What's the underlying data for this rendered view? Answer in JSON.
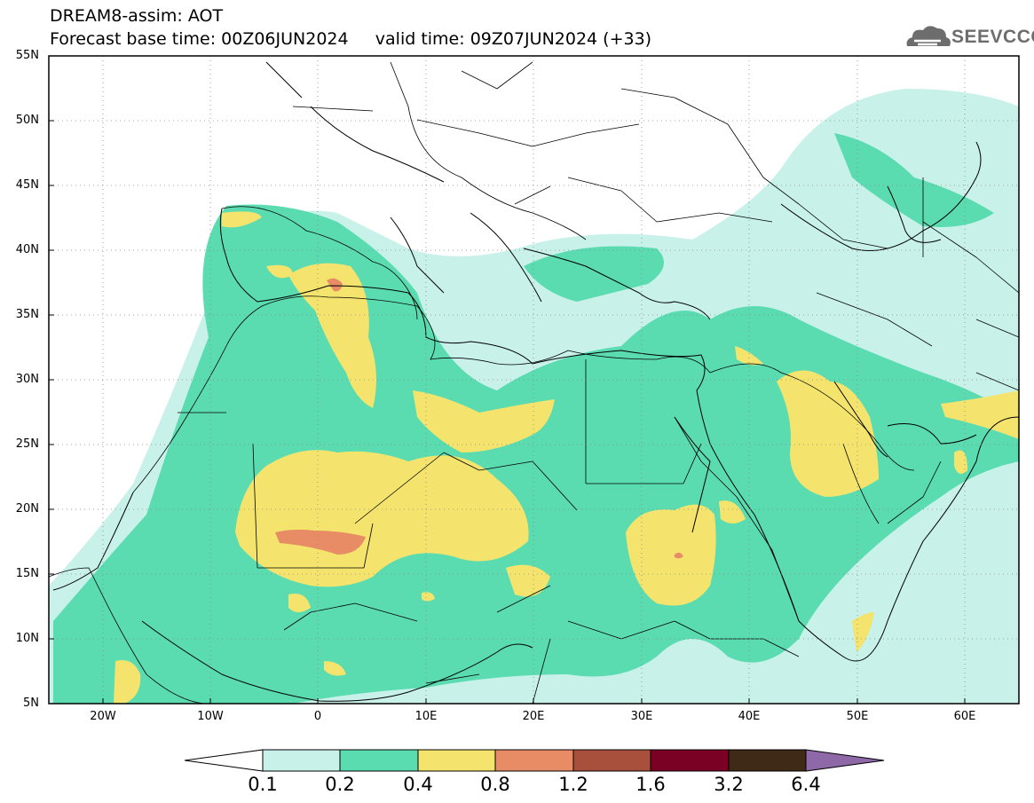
{
  "title_line1": "DREAM8-assim: AOT",
  "title_line2": "Forecast base time: 00Z06JUN2024     valid time: 09Z07JUN2024 (+33)",
  "logo_text": "SEEVCCC",
  "map": {
    "lat_range": [
      5,
      55
    ],
    "lon_range": [
      -25,
      65
    ],
    "lat_labels": [
      "55N",
      "50N",
      "45N",
      "40N",
      "35N",
      "30N",
      "25N",
      "20N",
      "15N",
      "10N",
      "5N"
    ],
    "lon_labels": [
      "20W",
      "10W",
      "0",
      "10E",
      "20E",
      "30E",
      "40E",
      "50E",
      "60E"
    ],
    "gridlines": "dotted"
  },
  "colorbar": {
    "labels": [
      "0.1",
      "0.2",
      "0.4",
      "0.8",
      "1.2",
      "1.6",
      "3.2",
      "6.4"
    ],
    "colors": [
      "#ffffff",
      "#c8f1ea",
      "#5bdcb0",
      "#f4e46e",
      "#e88c66",
      "#a9503c",
      "#7a0024",
      "#3e2a17",
      "#8f68a8"
    ],
    "extend": "both"
  }
}
